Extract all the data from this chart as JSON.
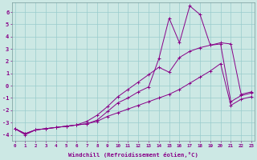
{
  "xlabel": "Windchill (Refroidissement éolien,°C)",
  "background_color": "#cce8e4",
  "grid_color": "#99cccc",
  "line_color": "#880088",
  "x_data": [
    0,
    1,
    2,
    3,
    4,
    5,
    6,
    7,
    8,
    9,
    10,
    11,
    12,
    13,
    14,
    15,
    16,
    17,
    18,
    19,
    20,
    21,
    22,
    23
  ],
  "y_main": [
    -3.5,
    -4.0,
    -3.6,
    -3.5,
    -3.4,
    -3.3,
    -3.2,
    -3.1,
    -2.8,
    -2.1,
    -1.4,
    -1.0,
    -0.5,
    -0.1,
    2.2,
    5.5,
    3.5,
    6.5,
    5.8,
    3.3,
    3.5,
    3.4,
    -0.7,
    -0.5
  ],
  "y_upper": [
    -3.5,
    -3.9,
    -3.6,
    -3.5,
    -3.4,
    -3.3,
    -3.2,
    -2.9,
    -2.4,
    -1.7,
    -0.9,
    -0.3,
    0.3,
    0.9,
    1.5,
    1.1,
    2.3,
    2.8,
    3.1,
    3.3,
    3.4,
    -1.3,
    -0.8,
    -0.6
  ],
  "y_lower": [
    -3.5,
    -3.9,
    -3.6,
    -3.5,
    -3.4,
    -3.3,
    -3.2,
    -3.1,
    -2.9,
    -2.5,
    -2.2,
    -1.9,
    -1.6,
    -1.3,
    -1.0,
    -0.7,
    -0.3,
    0.2,
    0.7,
    1.2,
    1.8,
    -1.6,
    -1.1,
    -0.9
  ],
  "ylim": [
    -4.5,
    6.8
  ],
  "xlim": [
    -0.3,
    23.3
  ],
  "yticks": [
    -4,
    -3,
    -2,
    -1,
    0,
    1,
    2,
    3,
    4,
    5,
    6
  ],
  "xticks": [
    0,
    1,
    2,
    3,
    4,
    5,
    6,
    7,
    8,
    9,
    10,
    11,
    12,
    13,
    14,
    15,
    16,
    17,
    18,
    19,
    20,
    21,
    22,
    23
  ]
}
